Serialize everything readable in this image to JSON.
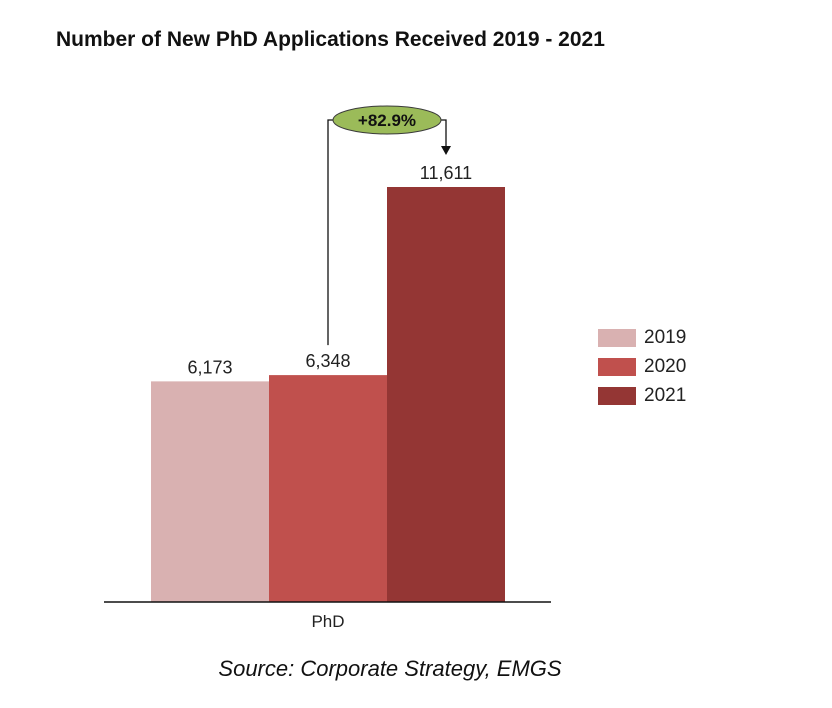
{
  "chart_data": {
    "type": "bar",
    "title": "Number of New PhD Applications Received 2019 - 2021",
    "categories": [
      "PhD"
    ],
    "series": [
      {
        "name": "2019",
        "values": [
          6173
        ],
        "label": "6,173",
        "color": "#d9b1b1"
      },
      {
        "name": "2020",
        "values": [
          6348
        ],
        "label": "6,348",
        "color": "#c0504d"
      },
      {
        "name": "2021",
        "values": [
          11611
        ],
        "label": "11,611",
        "color": "#943634"
      }
    ],
    "ylim": [
      0,
      11611
    ],
    "grid": false,
    "legend_position": "right",
    "annotation": {
      "text": "+82.9%",
      "from_series": "2020",
      "to_series": "2021",
      "color": "#9bbb59"
    },
    "source": "Source: Corporate Strategy, EMGS"
  }
}
